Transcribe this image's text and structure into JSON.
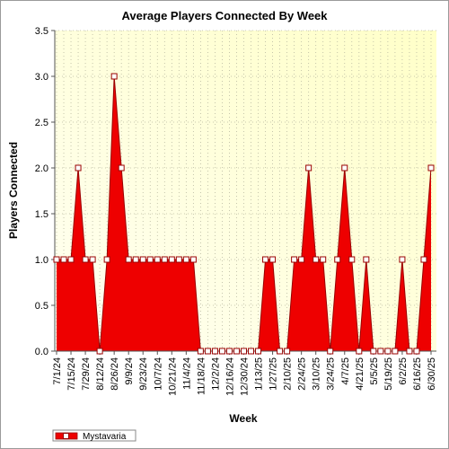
{
  "chart_data": {
    "type": "area",
    "title": "Average Players Connected By Week",
    "xlabel": "Week",
    "ylabel": "Players Connected",
    "ylim": [
      0,
      3.5
    ],
    "yticks": [
      "0.0",
      "0.5",
      "1.0",
      "1.5",
      "2.0",
      "2.5",
      "3.0",
      "3.5"
    ],
    "xtick_labels": [
      "7/1/24",
      "7/15/24",
      "7/29/24",
      "8/12/24",
      "8/26/24",
      "9/9/24",
      "9/23/24",
      "10/7/24",
      "10/21/24",
      "11/4/24",
      "11/18/24",
      "12/2/24",
      "12/16/24",
      "12/30/24",
      "1/13/25",
      "1/27/25",
      "2/10/25",
      "2/24/25",
      "3/10/25",
      "3/24/25",
      "4/7/25",
      "4/21/25",
      "5/5/25",
      "5/19/25",
      "6/2/25",
      "6/16/25",
      "6/30/25"
    ],
    "grid": true,
    "legend_position": "bottom-left",
    "colors": {
      "fill": "#ee0000",
      "line": "#990000",
      "plot_bg_light": "#fffff2",
      "plot_bg_dark": "#ffffc8",
      "grid": "#b8b8a0"
    },
    "series": [
      {
        "name": "Mystavaria",
        "values": [
          1,
          1,
          1,
          2,
          1,
          1,
          0,
          1,
          3,
          2,
          1,
          1,
          1,
          1,
          1,
          1,
          1,
          1,
          1,
          1,
          0,
          0,
          0,
          0,
          0,
          0,
          0,
          0,
          0,
          1,
          1,
          0,
          0,
          1,
          1,
          2,
          1,
          1,
          0,
          1,
          2,
          1,
          0,
          1,
          0,
          0,
          0,
          0,
          1,
          0,
          0,
          1,
          2
        ]
      }
    ]
  }
}
